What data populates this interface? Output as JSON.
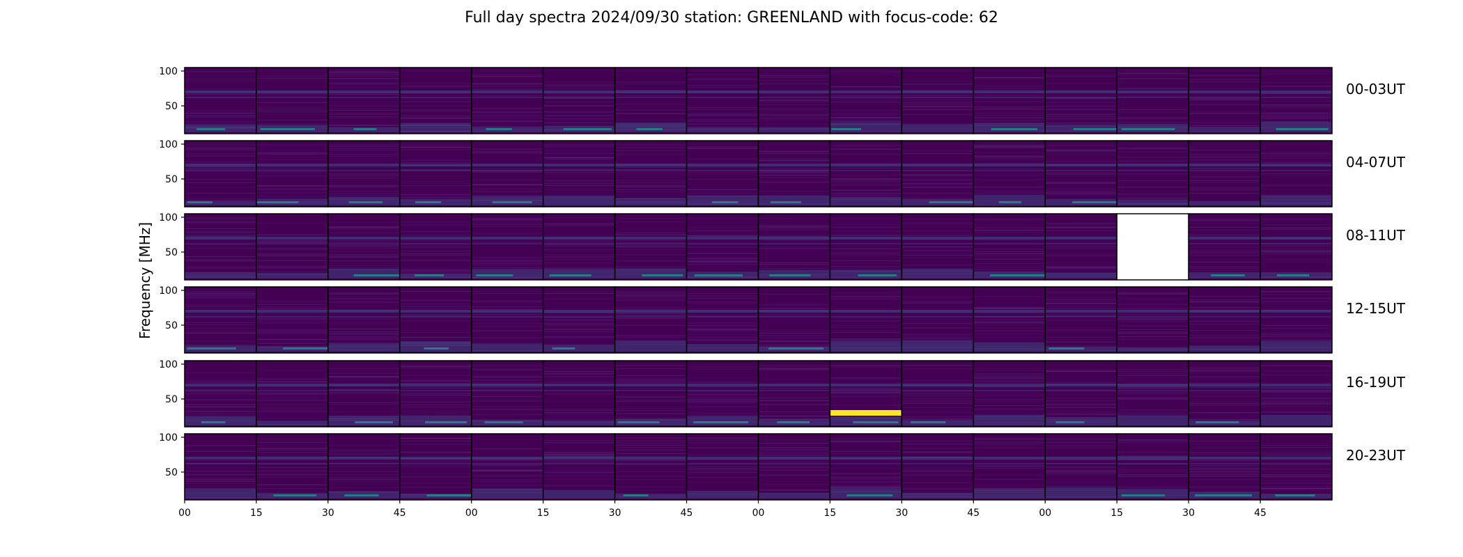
{
  "title": "Full day spectra 2024/09/30 station: GREENLAND with focus-code: 62",
  "chart_data": {
    "type": "heatmap",
    "title": "Full day spectra 2024/09/30 station: GREENLAND with focus-code: 62",
    "ylabel": "Frequency [MHz]",
    "yticks": [
      50,
      100
    ],
    "ylim": [
      10,
      105
    ],
    "xtick_labels": [
      "00",
      "15",
      "30",
      "45",
      "00",
      "15",
      "30",
      "45",
      "00",
      "15",
      "30",
      "45",
      "00",
      "15",
      "30",
      "45"
    ],
    "colormap": "viridis",
    "rows": [
      {
        "label": "00-03UT",
        "missing_panels": [],
        "bright_panels": []
      },
      {
        "label": "04-07UT",
        "missing_panels": [],
        "bright_panels": []
      },
      {
        "label": "08-11UT",
        "missing_panels": [
          13
        ],
        "bright_panels": []
      },
      {
        "label": "12-15UT",
        "missing_panels": [],
        "bright_panels": []
      },
      {
        "label": "16-19UT",
        "missing_panels": [],
        "bright_panels": [
          9
        ]
      },
      {
        "label": "20-23UT",
        "missing_panels": [],
        "bright_panels": []
      }
    ],
    "panels_per_row": 16,
    "colors": {
      "background": "#440154",
      "mid": "#3b528b",
      "teal": "#21918c",
      "green": "#5ec962",
      "yellow": "#fde725"
    }
  }
}
